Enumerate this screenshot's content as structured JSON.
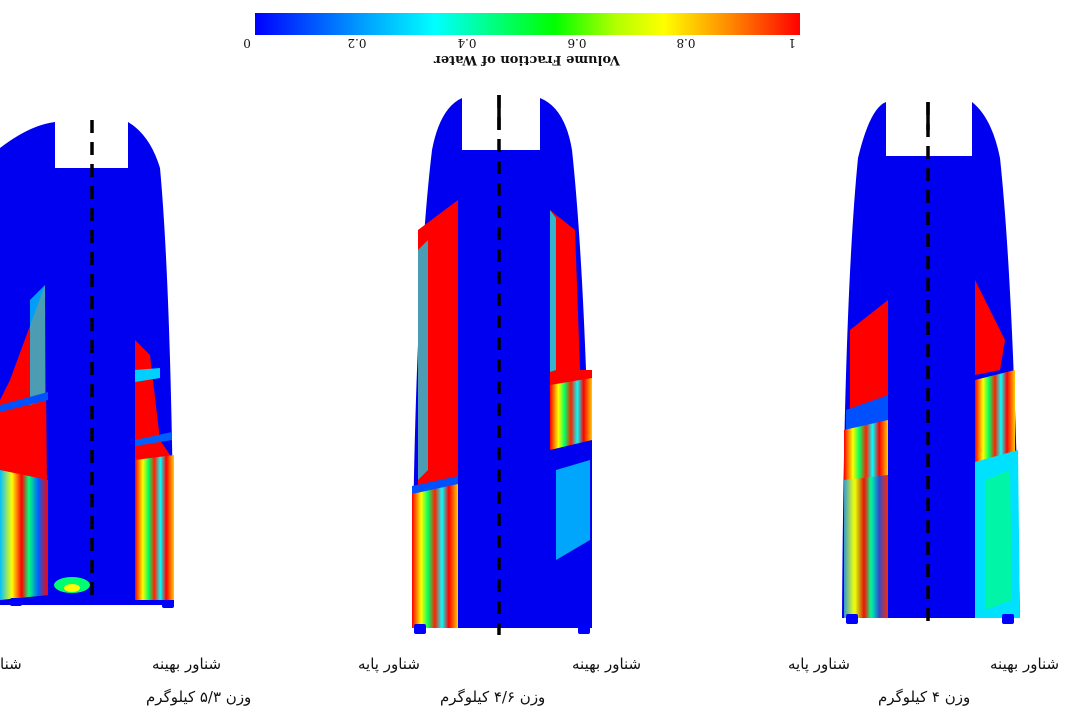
{
  "colorbar": {
    "title": "Volume Fraction of Water",
    "ticks": [
      "0",
      "0.2",
      "0.4",
      "0.6",
      "0.8",
      "1"
    ],
    "stops": [
      "#0000ff",
      "#00ffff",
      "#00ff00",
      "#ffff00",
      "#ff0000"
    ]
  },
  "panels": [
    {
      "label_left": "شناور پایه",
      "label_right": "شناور بهینه",
      "weight": "وزن ۵/۳ کیلوگرم",
      "label_left_visible": "شنا"
    },
    {
      "label_left": "شناور پایه",
      "label_right": "شناور بهینه",
      "weight": "وزن ۴/۶ کیلوگرم"
    },
    {
      "label_left": "شناور پایه",
      "label_right": "شناور بهینه",
      "weight": "وزن ۴ کیلوگرم"
    }
  ],
  "colors": {
    "background": "#0000ff",
    "high": "#ff0000",
    "mid": "#ffff00",
    "low": "#00ffff"
  }
}
